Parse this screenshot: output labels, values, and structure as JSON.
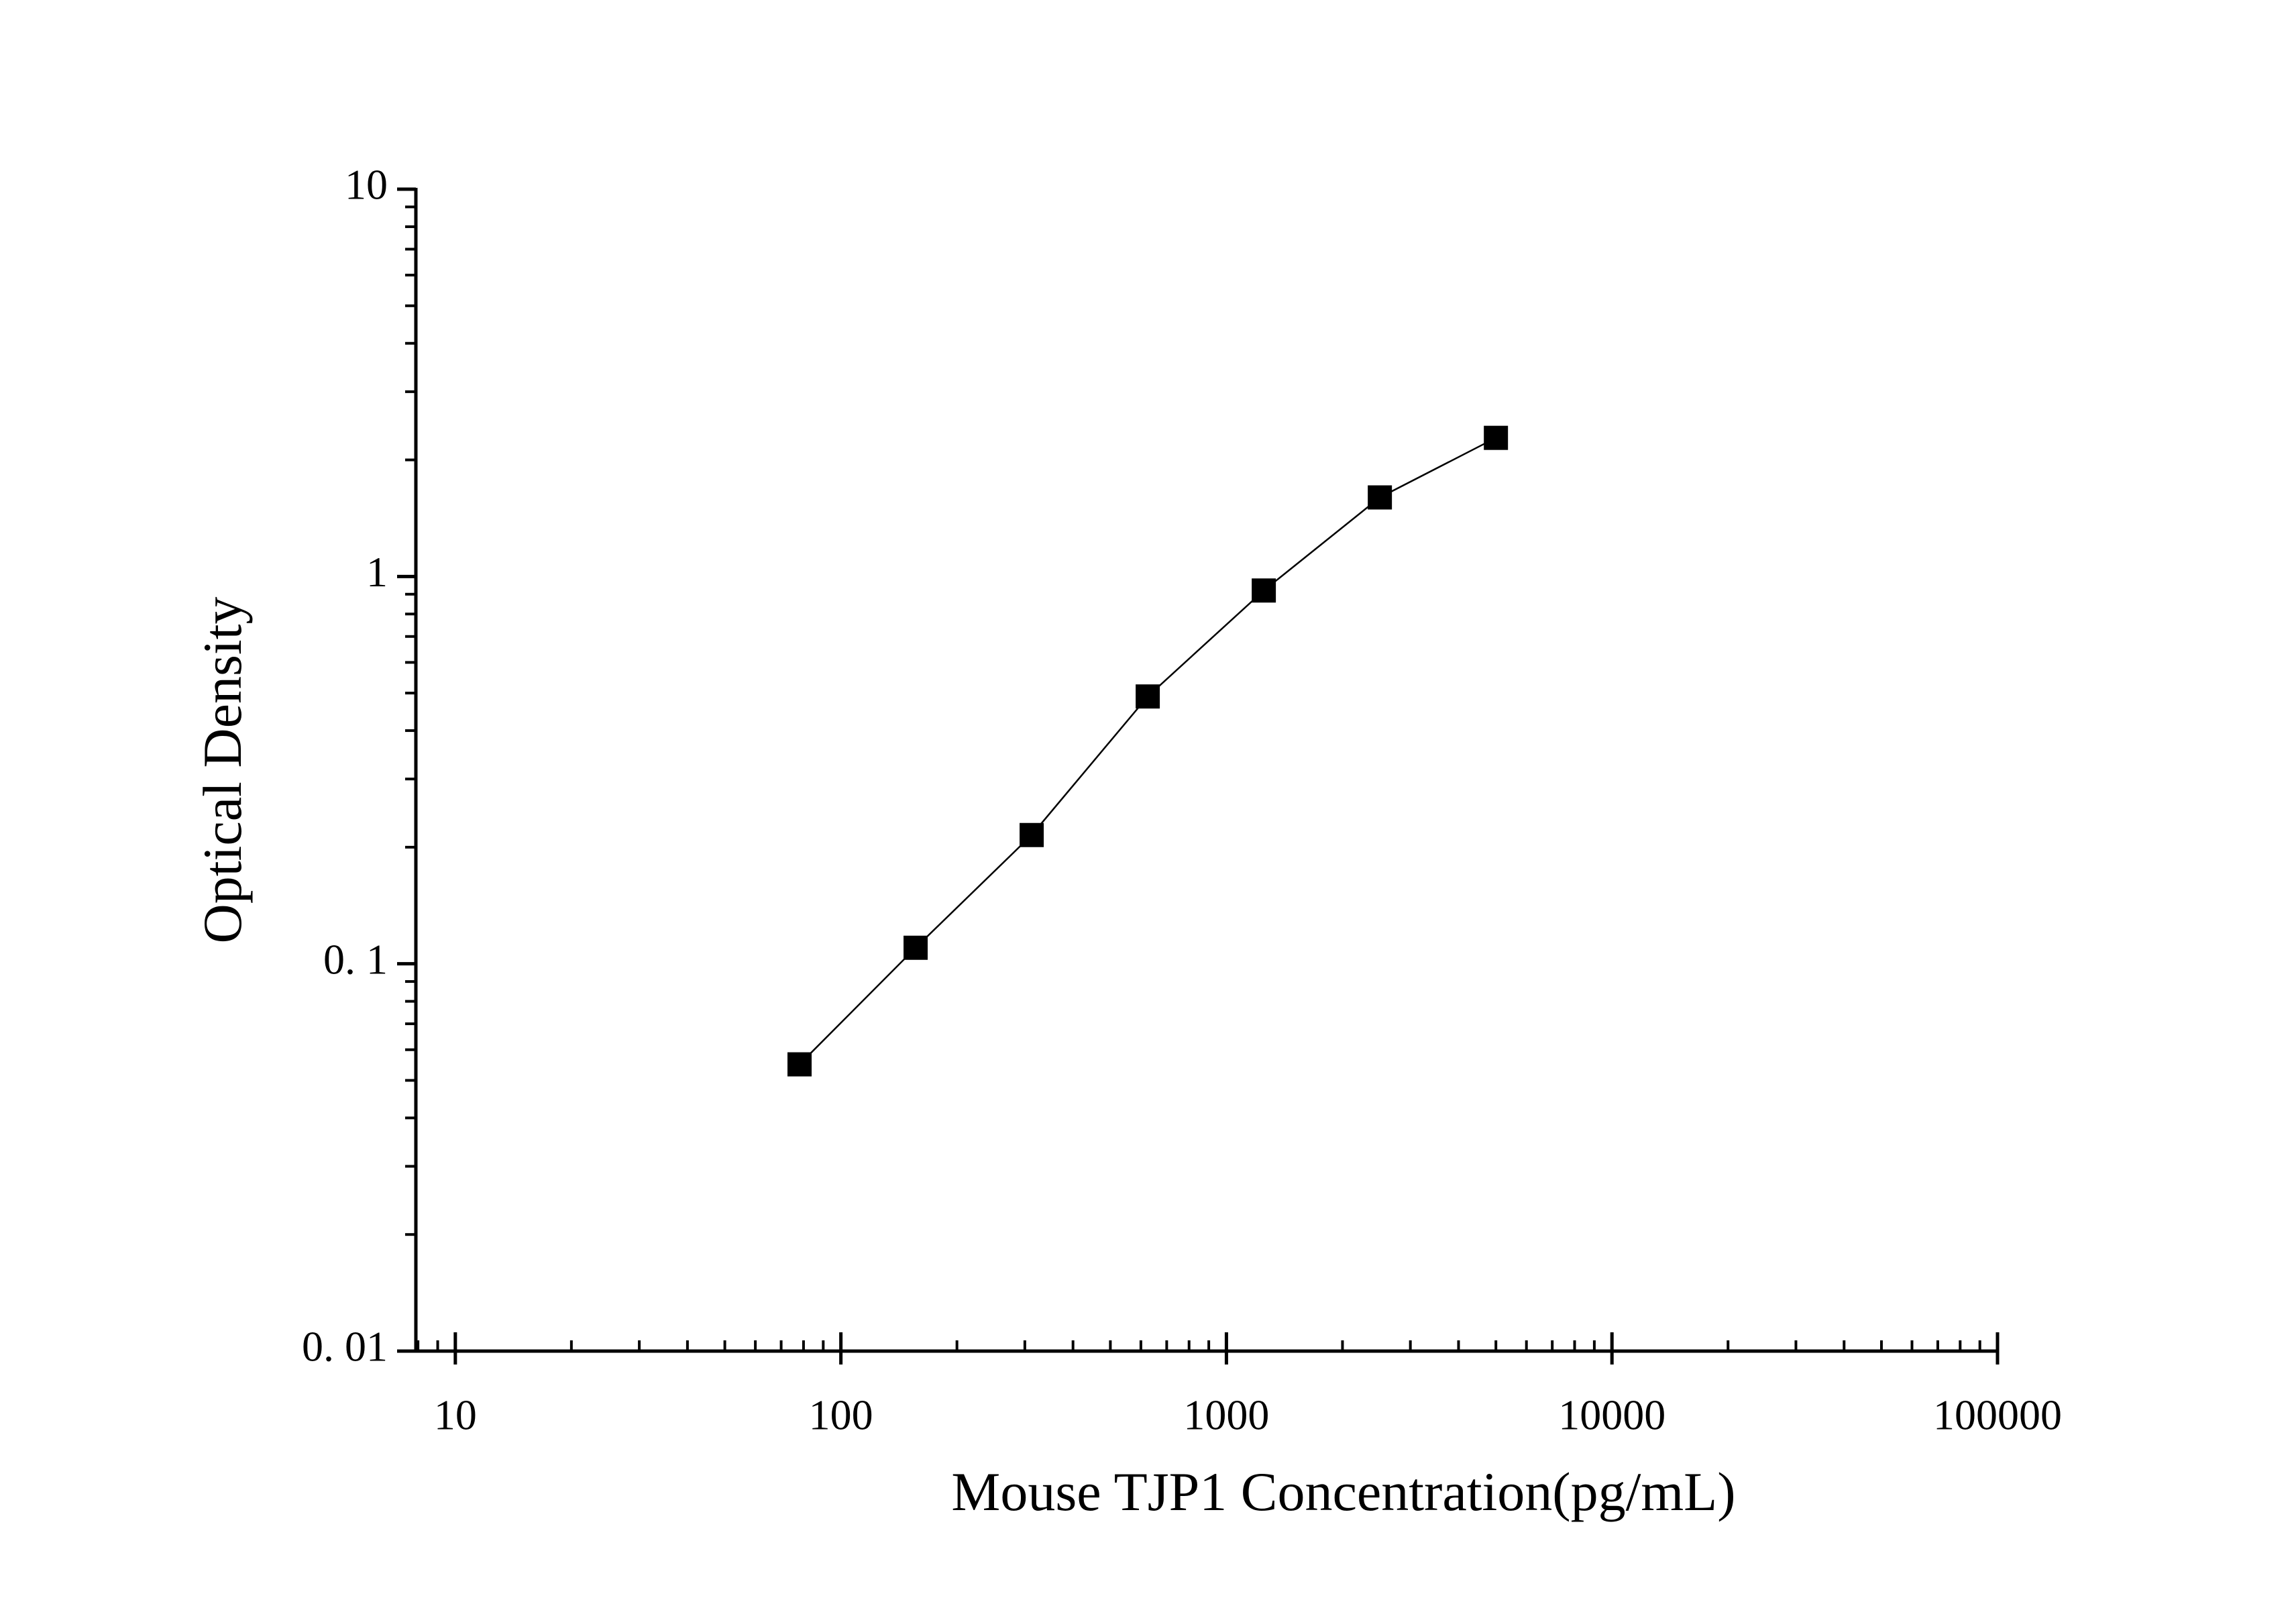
{
  "chart_data": {
    "type": "line",
    "x_label": "Mouse TJP1 Concentration(pg/mL)",
    "y_label": "Optical Density",
    "x": [
      78.125,
      156.25,
      312.5,
      625,
      1250,
      2500,
      5000
    ],
    "series": [
      {
        "color": "#000000",
        "values": [
          0.055,
          0.11,
          0.215,
          0.49,
          0.92,
          1.6,
          2.28
        ]
      }
    ],
    "xscale": "log",
    "yscale": "log",
    "xlim": [
      7.9,
      100000
    ],
    "ylim": [
      0.01,
      10
    ],
    "xticks": [
      10,
      100,
      1000,
      10000,
      100000
    ],
    "yticks": [
      {
        "value": 0.01,
        "label": "0. 01"
      },
      {
        "value": 0.1,
        "label": "0. 1"
      },
      1,
      10
    ],
    "grid": false,
    "markers": "square"
  }
}
